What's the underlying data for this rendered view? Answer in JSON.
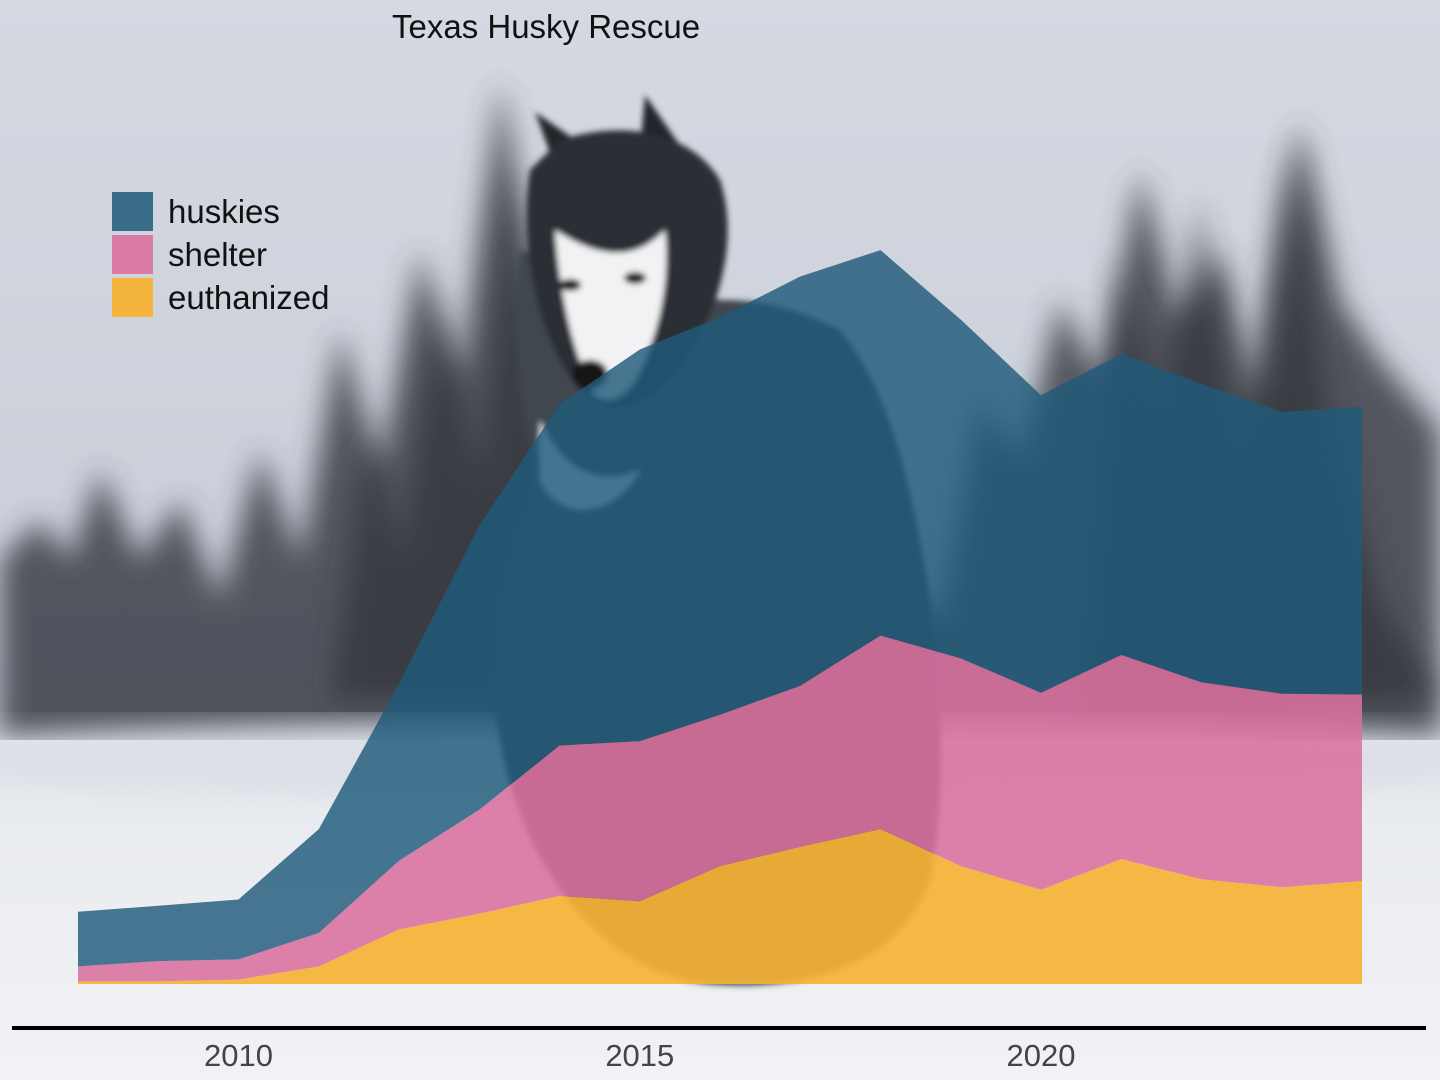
{
  "chart_data": {
    "type": "area",
    "stacked": true,
    "title": "Texas Husky Rescue",
    "xlabel": "",
    "ylabel": "",
    "x": [
      2008,
      2009,
      2010,
      2011,
      2012,
      2013,
      2014,
      2015,
      2016,
      2017,
      2018,
      2019,
      2020,
      2021,
      2022,
      2023,
      2024
    ],
    "xlim": [
      2008,
      2024
    ],
    "xticks": [
      "2010",
      "2015",
      "2020"
    ],
    "ylim": [
      0,
      100
    ],
    "y_axis_visible": false,
    "grid": false,
    "legend_position": "top-left",
    "background": "photo of a Siberian husky running in snow",
    "series": [
      {
        "name": "euthanized",
        "color": "#f5b335",
        "values": [
          0.3,
          0.3,
          0.5,
          2.0,
          6.2,
          8.0,
          10.0,
          9.4,
          13.4,
          15.6,
          17.6,
          13.4,
          10.7,
          14.2,
          11.9,
          11.0,
          11.7
        ]
      },
      {
        "name": "shelter",
        "color": "#d9719f",
        "values": [
          1.7,
          2.3,
          2.3,
          3.8,
          7.8,
          11.8,
          17.1,
          18.2,
          17.2,
          18.3,
          22.0,
          23.6,
          22.4,
          23.2,
          22.4,
          22.0,
          21.2
        ]
      },
      {
        "name": "huskies",
        "color": "#205a7a",
        "values": [
          6.2,
          6.3,
          6.8,
          11.8,
          20.1,
          32.3,
          38.8,
          44.5,
          45.2,
          46.5,
          43.8,
          38.5,
          33.8,
          34.2,
          33.9,
          32.0,
          32.7
        ]
      }
    ]
  }
}
